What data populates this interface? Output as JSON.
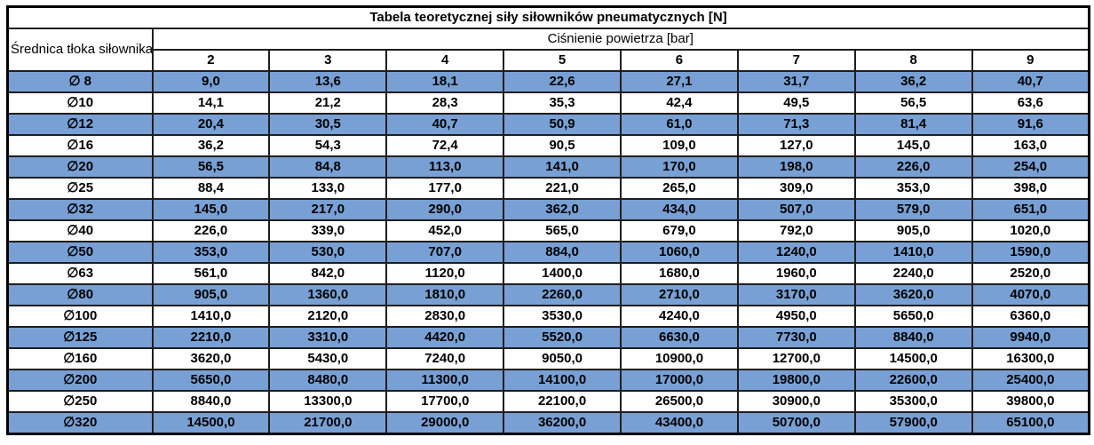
{
  "table": {
    "title": "Tabela teoretycznej siły siłowników pneumatycznych [N]",
    "row_header": "Średnica tłoka siłownika",
    "col_group_header": "Ciśnienie powietrza [bar]",
    "pressures": [
      "2",
      "3",
      "4",
      "5",
      "6",
      "7",
      "8",
      "9"
    ],
    "rows": [
      {
        "diameter": "∅ 8",
        "values": [
          "9,0",
          "13,6",
          "18,1",
          "22,6",
          "27,1",
          "31,7",
          "36,2",
          "40,7"
        ]
      },
      {
        "diameter": "∅10",
        "values": [
          "14,1",
          "21,2",
          "28,3",
          "35,3",
          "42,4",
          "49,5",
          "56,5",
          "63,6"
        ]
      },
      {
        "diameter": "∅12",
        "values": [
          "20,4",
          "30,5",
          "40,7",
          "50,9",
          "61,0",
          "71,3",
          "81,4",
          "91,6"
        ]
      },
      {
        "diameter": "∅16",
        "values": [
          "36,2",
          "54,3",
          "72,4",
          "90,5",
          "109,0",
          "127,0",
          "145,0",
          "163,0"
        ]
      },
      {
        "diameter": "∅20",
        "values": [
          "56,5",
          "84,8",
          "113,0",
          "141,0",
          "170,0",
          "198,0",
          "226,0",
          "254,0"
        ]
      },
      {
        "diameter": "∅25",
        "values": [
          "88,4",
          "133,0",
          "177,0",
          "221,0",
          "265,0",
          "309,0",
          "353,0",
          "398,0"
        ]
      },
      {
        "diameter": "∅32",
        "values": [
          "145,0",
          "217,0",
          "290,0",
          "362,0",
          "434,0",
          "507,0",
          "579,0",
          "651,0"
        ]
      },
      {
        "diameter": "∅40",
        "values": [
          "226,0",
          "339,0",
          "452,0",
          "565,0",
          "679,0",
          "792,0",
          "905,0",
          "1020,0"
        ]
      },
      {
        "diameter": "∅50",
        "values": [
          "353,0",
          "530,0",
          "707,0",
          "884,0",
          "1060,0",
          "1240,0",
          "1410,0",
          "1590,0"
        ]
      },
      {
        "diameter": "∅63",
        "values": [
          "561,0",
          "842,0",
          "1120,0",
          "1400,0",
          "1680,0",
          "1960,0",
          "2240,0",
          "2520,0"
        ]
      },
      {
        "diameter": "∅80",
        "values": [
          "905,0",
          "1360,0",
          "1810,0",
          "2260,0",
          "2710,0",
          "3170,0",
          "3620,0",
          "4070,0"
        ]
      },
      {
        "diameter": "∅100",
        "values": [
          "1410,0",
          "2120,0",
          "2830,0",
          "3530,0",
          "4240,0",
          "4950,0",
          "5650,0",
          "6360,0"
        ]
      },
      {
        "diameter": "∅125",
        "values": [
          "2210,0",
          "3310,0",
          "4420,0",
          "5520,0",
          "6630,0",
          "7730,0",
          "8840,0",
          "9940,0"
        ]
      },
      {
        "diameter": "∅160",
        "values": [
          "3620,0",
          "5430,0",
          "7240,0",
          "9050,0",
          "10900,0",
          "12700,0",
          "14500,0",
          "16300,0"
        ]
      },
      {
        "diameter": "∅200",
        "values": [
          "5650,0",
          "8480,0",
          "11300,0",
          "14100,0",
          "17000,0",
          "19800,0",
          "22600,0",
          "25400,0"
        ]
      },
      {
        "diameter": "∅250",
        "values": [
          "8840,0",
          "13300,0",
          "17700,0",
          "22100,0",
          "26500,0",
          "30900,0",
          "35300,0",
          "39800,0"
        ]
      },
      {
        "diameter": "∅320",
        "values": [
          "14500,0",
          "21700,0",
          "29000,0",
          "36200,0",
          "43400,0",
          "50700,0",
          "57900,0",
          "65100,0"
        ]
      }
    ],
    "colors": {
      "row_highlight": "#78A0D4",
      "inner_border": "#1e1e1e",
      "outer_border": "#000000",
      "text": "#000000",
      "background": "#ffffff"
    }
  },
  "chart_data": {
    "type": "table",
    "title": "Tabela teoretycznej siły siłowników pneumatycznych [N]",
    "row_header": "Średnica tłoka siłownika",
    "column_group_label": "Ciśnienie powietrza [bar]",
    "columns": [
      2,
      3,
      4,
      5,
      6,
      7,
      8,
      9
    ],
    "rows": [
      {
        "label": "∅8",
        "values": [
          9.0,
          13.6,
          18.1,
          22.6,
          27.1,
          31.7,
          36.2,
          40.7
        ]
      },
      {
        "label": "∅10",
        "values": [
          14.1,
          21.2,
          28.3,
          35.3,
          42.4,
          49.5,
          56.5,
          63.6
        ]
      },
      {
        "label": "∅12",
        "values": [
          20.4,
          30.5,
          40.7,
          50.9,
          61.0,
          71.3,
          81.4,
          91.6
        ]
      },
      {
        "label": "∅16",
        "values": [
          36.2,
          54.3,
          72.4,
          90.5,
          109.0,
          127.0,
          145.0,
          163.0
        ]
      },
      {
        "label": "∅20",
        "values": [
          56.5,
          84.8,
          113.0,
          141.0,
          170.0,
          198.0,
          226.0,
          254.0
        ]
      },
      {
        "label": "∅25",
        "values": [
          88.4,
          133.0,
          177.0,
          221.0,
          265.0,
          309.0,
          353.0,
          398.0
        ]
      },
      {
        "label": "∅32",
        "values": [
          145.0,
          217.0,
          290.0,
          362.0,
          434.0,
          507.0,
          579.0,
          651.0
        ]
      },
      {
        "label": "∅40",
        "values": [
          226.0,
          339.0,
          452.0,
          565.0,
          679.0,
          792.0,
          905.0,
          1020.0
        ]
      },
      {
        "label": "∅50",
        "values": [
          353.0,
          530.0,
          707.0,
          884.0,
          1060.0,
          1240.0,
          1410.0,
          1590.0
        ]
      },
      {
        "label": "∅63",
        "values": [
          561.0,
          842.0,
          1120.0,
          1400.0,
          1680.0,
          1960.0,
          2240.0,
          2520.0
        ]
      },
      {
        "label": "∅80",
        "values": [
          905.0,
          1360.0,
          1810.0,
          2260.0,
          2710.0,
          3170.0,
          3620.0,
          4070.0
        ]
      },
      {
        "label": "∅100",
        "values": [
          1410.0,
          2120.0,
          2830.0,
          3530.0,
          4240.0,
          4950.0,
          5650.0,
          6360.0
        ]
      },
      {
        "label": "∅125",
        "values": [
          2210.0,
          3310.0,
          4420.0,
          5520.0,
          6630.0,
          7730.0,
          8840.0,
          9940.0
        ]
      },
      {
        "label": "∅160",
        "values": [
          3620.0,
          5430.0,
          7240.0,
          9050.0,
          10900.0,
          12700.0,
          14500.0,
          16300.0
        ]
      },
      {
        "label": "∅200",
        "values": [
          5650.0,
          8480.0,
          11300.0,
          14100.0,
          17000.0,
          19800.0,
          22600.0,
          25400.0
        ]
      },
      {
        "label": "∅250",
        "values": [
          8840.0,
          13300.0,
          17700.0,
          22100.0,
          26500.0,
          30900.0,
          35300.0,
          39800.0
        ]
      },
      {
        "label": "∅320",
        "values": [
          14500.0,
          21700.0,
          29000.0,
          36200.0,
          43400.0,
          50700.0,
          57900.0,
          65100.0
        ]
      }
    ]
  }
}
